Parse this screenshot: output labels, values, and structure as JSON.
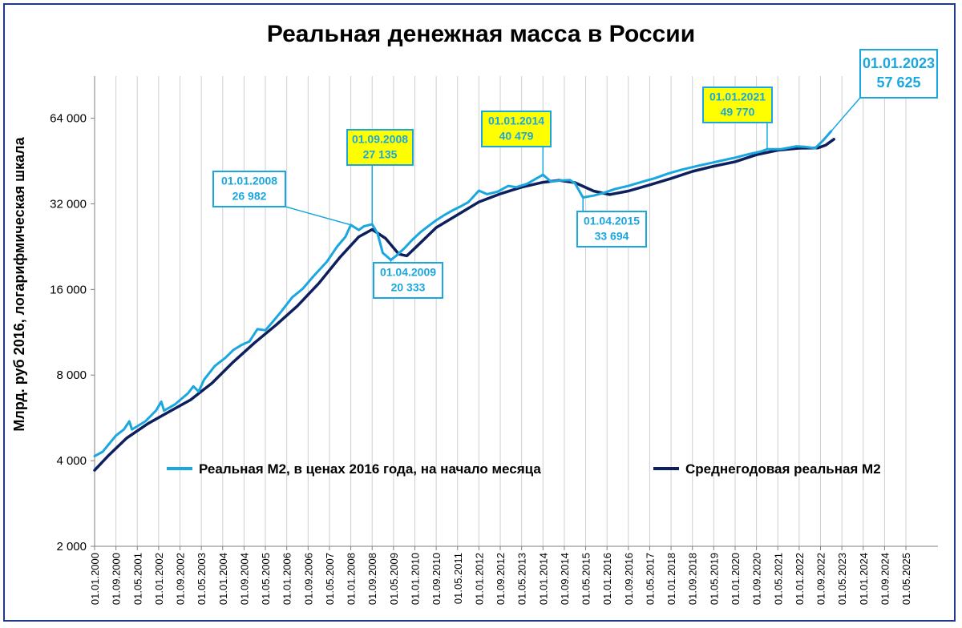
{
  "chart_data": {
    "type": "line",
    "title": "Реальная денежная масса в России",
    "ylabel": "Млрд. руб 2016, логарифмическая шкала",
    "xlabel": "",
    "y_scale": "log2",
    "ylim": [
      2000,
      90000
    ],
    "y_ticks": [
      "2 000",
      "4 000",
      "8 000",
      "16 000",
      "32 000",
      "64 000"
    ],
    "y_tick_values": [
      2000,
      4000,
      8000,
      16000,
      32000,
      64000
    ],
    "x_ticks": [
      "01.01.2000",
      "01.09.2000",
      "01.05.2001",
      "01.01.2002",
      "01.09.2002",
      "01.05.2003",
      "01.01.2004",
      "01.09.2004",
      "01.05.2005",
      "01.01.2006",
      "01.09.2006",
      "01.05.2007",
      "01.01.2008",
      "01.09.2008",
      "01.05.2009",
      "01.01.2010",
      "01.09.2010",
      "01.05.2011",
      "01.01.2012",
      "01.09.2012",
      "01.05.2013",
      "01.01.2014",
      "01.09.2014",
      "01.05.2015",
      "01.01.2016",
      "01.09.2016",
      "01.05.2017",
      "01.01.2018",
      "01.09.2018",
      "01.05.2019",
      "01.01.2020",
      "01.09.2020",
      "01.05.2021",
      "01.01.2022",
      "01.09.2022",
      "01.05.2023",
      "01.01.2024",
      "01.09.2024",
      "01.05.2025"
    ],
    "x_range": [
      "01.01.2000",
      "01.05.2026"
    ],
    "grid": "vertical",
    "legend_position": "center",
    "series": [
      {
        "name": "Реальная М2, в ценах 2016 года, на начало месяца",
        "color": "#1aa7e0",
        "points": [
          [
            "01.01.2000",
            4150
          ],
          [
            "01.04.2000",
            4300
          ],
          [
            "01.09.2000",
            4900
          ],
          [
            "01.12.2000",
            5150
          ],
          [
            "01.02.2001",
            5500
          ],
          [
            "01.03.2001",
            5150
          ],
          [
            "01.08.2001",
            5500
          ],
          [
            "01.12.2001",
            6000
          ],
          [
            "01.02.2002",
            6450
          ],
          [
            "01.03.2002",
            6000
          ],
          [
            "01.07.2002",
            6300
          ],
          [
            "01.12.2002",
            6900
          ],
          [
            "01.02.2003",
            7300
          ],
          [
            "01.04.2003",
            7000
          ],
          [
            "01.06.2003",
            7700
          ],
          [
            "01.10.2003",
            8600
          ],
          [
            "01.02.2004",
            9200
          ],
          [
            "01.05.2004",
            9800
          ],
          [
            "01.08.2004",
            10200
          ],
          [
            "01.11.2004",
            10500
          ],
          [
            "01.02.2005",
            11600
          ],
          [
            "01.05.2005",
            11500
          ],
          [
            "01.08.2005",
            12400
          ],
          [
            "01.11.2005",
            13400
          ],
          [
            "01.03.2006",
            15000
          ],
          [
            "01.07.2006",
            16100
          ],
          [
            "01.11.2006",
            17800
          ],
          [
            "01.04.2007",
            20000
          ],
          [
            "01.08.2007",
            22700
          ],
          [
            "01.11.2007",
            24500
          ],
          [
            "01.01.2008",
            26982
          ],
          [
            "01.04.2008",
            25900
          ],
          [
            "01.06.2008",
            26700
          ],
          [
            "01.09.2008",
            27135
          ],
          [
            "01.11.2008",
            25200
          ],
          [
            "01.01.2009",
            21500
          ],
          [
            "01.04.2009",
            20333
          ],
          [
            "01.06.2009",
            21000
          ],
          [
            "01.09.2009",
            22300
          ],
          [
            "01.12.2009",
            23900
          ],
          [
            "01.03.2010",
            25400
          ],
          [
            "01.06.2010",
            26700
          ],
          [
            "01.09.2010",
            28000
          ],
          [
            "01.12.2010",
            29200
          ],
          [
            "01.03.2011",
            30300
          ],
          [
            "01.06.2011",
            31300
          ],
          [
            "01.09.2011",
            32400
          ],
          [
            "01.01.2012",
            35600
          ],
          [
            "01.04.2012",
            34600
          ],
          [
            "01.08.2012",
            35300
          ],
          [
            "01.12.2012",
            37000
          ],
          [
            "01.03.2013",
            36600
          ],
          [
            "01.07.2013",
            37600
          ],
          [
            "01.01.2014",
            40479
          ],
          [
            "01.04.2014",
            38300
          ],
          [
            "01.07.2014",
            38600
          ],
          [
            "01.11.2014",
            38800
          ],
          [
            "01.01.2015",
            37800
          ],
          [
            "01.04.2015",
            33694
          ],
          [
            "01.08.2015",
            34200
          ],
          [
            "01.12.2015",
            35000
          ],
          [
            "01.04.2016",
            36100
          ],
          [
            "01.09.2016",
            37000
          ],
          [
            "01.02.2017",
            38200
          ],
          [
            "01.07.2017",
            39400
          ],
          [
            "01.12.2017",
            40900
          ],
          [
            "01.05.2018",
            42200
          ],
          [
            "01.11.2018",
            43500
          ],
          [
            "01.06.2019",
            45000
          ],
          [
            "01.01.2020",
            46500
          ],
          [
            "01.06.2020",
            47800
          ],
          [
            "01.11.2020",
            49000
          ],
          [
            "01.01.2021",
            49770
          ],
          [
            "01.06.2021",
            49800
          ],
          [
            "01.12.2021",
            51000
          ],
          [
            "01.03.2022",
            50800
          ],
          [
            "01.07.2022",
            50200
          ],
          [
            "01.10.2022",
            53500
          ],
          [
            "01.01.2023",
            57625
          ]
        ]
      },
      {
        "name": "Среднегодовая реальная М2",
        "color": "#0d1f5c",
        "points": [
          [
            "01.01.2000",
            3700
          ],
          [
            "01.06.2000",
            4150
          ],
          [
            "01.01.2001",
            4800
          ],
          [
            "01.09.2001",
            5400
          ],
          [
            "01.05.2002",
            5950
          ],
          [
            "01.01.2003",
            6550
          ],
          [
            "01.09.2003",
            7500
          ],
          [
            "01.05.2004",
            8900
          ],
          [
            "01.01.2005",
            10400
          ],
          [
            "01.09.2005",
            12000
          ],
          [
            "01.05.2006",
            14000
          ],
          [
            "01.01.2007",
            16800
          ],
          [
            "01.09.2007",
            20800
          ],
          [
            "01.04.2008",
            24500
          ],
          [
            "01.09.2008",
            26000
          ],
          [
            "01.02.2009",
            24200
          ],
          [
            "01.07.2009",
            21300
          ],
          [
            "01.10.2009",
            21000
          ],
          [
            "01.02.2010",
            22800
          ],
          [
            "01.09.2010",
            26400
          ],
          [
            "01.05.2011",
            29300
          ],
          [
            "01.01.2012",
            32500
          ],
          [
            "01.09.2012",
            34700
          ],
          [
            "01.05.2013",
            36600
          ],
          [
            "01.01.2014",
            38100
          ],
          [
            "01.07.2014",
            38700
          ],
          [
            "01.01.2015",
            38000
          ],
          [
            "01.08.2015",
            35500
          ],
          [
            "01.02.2016",
            34500
          ],
          [
            "01.09.2016",
            35500
          ],
          [
            "01.05.2017",
            37300
          ],
          [
            "01.01.2018",
            39300
          ],
          [
            "01.09.2018",
            41600
          ],
          [
            "01.05.2019",
            43400
          ],
          [
            "01.01.2020",
            45000
          ],
          [
            "01.09.2020",
            47600
          ],
          [
            "01.05.2021",
            49400
          ],
          [
            "01.01.2022",
            50200
          ],
          [
            "01.08.2022",
            50300
          ],
          [
            "01.11.2022",
            51500
          ],
          [
            "01.02.2023",
            54000
          ]
        ]
      }
    ],
    "annotations": [
      {
        "date": "01.01.2008",
        "value": "26 982",
        "highlight": false
      },
      {
        "date": "01.09.2008",
        "value": "27 135",
        "highlight": true
      },
      {
        "date": "01.04.2009",
        "value": "20 333",
        "highlight": false
      },
      {
        "date": "01.01.2014",
        "value": "40 479",
        "highlight": true
      },
      {
        "date": "01.04.2015",
        "value": "33 694",
        "highlight": false
      },
      {
        "date": "01.01.2021",
        "value": "49 770",
        "highlight": true
      },
      {
        "date": "01.01.2023",
        "value": "57 625",
        "highlight": false,
        "large": true
      }
    ],
    "colors": {
      "annotation_border": "#1aa7e0",
      "annotation_text": "#1aa7e0",
      "highlight_fill": "#ffff00",
      "highlight_text": "#1aa7e0",
      "frame": "#1f3a8a",
      "grid": "#cfcfcf"
    }
  }
}
